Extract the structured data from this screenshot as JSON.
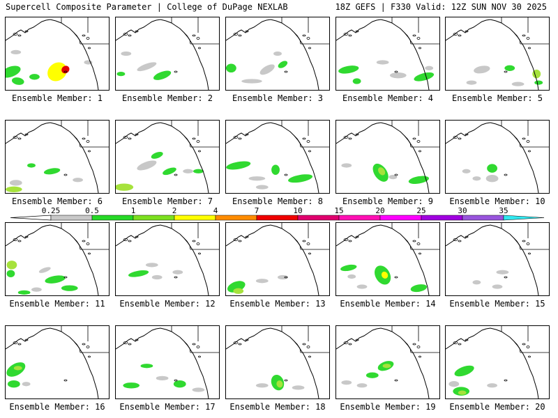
{
  "header": {
    "left": "Supercell Composite Parameter | College of DuPage NEXLAB",
    "right": "18Z GEFS | F330 Valid: 12Z SUN NOV 30 2025"
  },
  "caption_prefix": "Ensemble Member: ",
  "members": [
    {
      "id": "1",
      "blobs": [
        [
          0.05,
          0.75,
          0.1,
          0.07,
          0,
          -20
        ],
        [
          0.12,
          0.88,
          0.06,
          0.05,
          0,
          10
        ],
        [
          0.28,
          0.82,
          0.05,
          0.04,
          0,
          0
        ],
        [
          0.5,
          0.75,
          0.1,
          0.12,
          2,
          -40
        ],
        [
          0.58,
          0.72,
          0.04,
          0.05,
          4,
          -40
        ],
        [
          0.1,
          0.48,
          0.05,
          0.03,
          -1,
          0
        ],
        [
          0.8,
          0.62,
          0.04,
          0.03,
          -1,
          0
        ]
      ]
    },
    {
      "id": "2",
      "blobs": [
        [
          0.05,
          0.78,
          0.04,
          0.03,
          0,
          0
        ],
        [
          0.45,
          0.8,
          0.09,
          0.05,
          0,
          -20
        ],
        [
          0.3,
          0.68,
          0.1,
          0.04,
          -1,
          -20
        ],
        [
          0.1,
          0.5,
          0.05,
          0.03,
          -1,
          0
        ]
      ]
    },
    {
      "id": "3",
      "blobs": [
        [
          0.05,
          0.7,
          0.05,
          0.06,
          0,
          0
        ],
        [
          0.4,
          0.72,
          0.08,
          0.05,
          -1,
          -30
        ],
        [
          0.55,
          0.65,
          0.05,
          0.04,
          0,
          -30
        ],
        [
          0.25,
          0.88,
          0.1,
          0.03,
          -1,
          0
        ],
        [
          0.5,
          0.5,
          0.04,
          0.03,
          -1,
          0
        ]
      ]
    },
    {
      "id": "4",
      "blobs": [
        [
          0.12,
          0.72,
          0.1,
          0.05,
          0,
          -10
        ],
        [
          0.85,
          0.82,
          0.1,
          0.05,
          0,
          -15
        ],
        [
          0.2,
          0.88,
          0.04,
          0.04,
          0,
          0
        ],
        [
          0.45,
          0.62,
          0.06,
          0.03,
          -1,
          0
        ],
        [
          0.6,
          0.8,
          0.08,
          0.04,
          -1,
          0
        ],
        [
          0.9,
          0.7,
          0.04,
          0.03,
          -1,
          0
        ]
      ]
    },
    {
      "id": "5",
      "blobs": [
        [
          0.35,
          0.72,
          0.08,
          0.05,
          -1,
          -10
        ],
        [
          0.62,
          0.7,
          0.05,
          0.04,
          0,
          0
        ],
        [
          0.88,
          0.78,
          0.04,
          0.06,
          1,
          0
        ],
        [
          0.9,
          0.9,
          0.04,
          0.03,
          0,
          0
        ],
        [
          0.7,
          0.92,
          0.06,
          0.03,
          -1,
          0
        ],
        [
          0.25,
          0.9,
          0.05,
          0.03,
          -1,
          0
        ]
      ]
    },
    {
      "id": "6",
      "blobs": [
        [
          0.08,
          0.95,
          0.08,
          0.04,
          1,
          0
        ],
        [
          0.1,
          0.86,
          0.06,
          0.04,
          -1,
          0
        ],
        [
          0.45,
          0.7,
          0.08,
          0.04,
          0,
          -10
        ],
        [
          0.25,
          0.62,
          0.04,
          0.03,
          0,
          0
        ],
        [
          0.7,
          0.82,
          0.05,
          0.03,
          -1,
          0
        ]
      ]
    },
    {
      "id": "7",
      "blobs": [
        [
          0.08,
          0.92,
          0.09,
          0.05,
          1,
          0
        ],
        [
          0.4,
          0.48,
          0.06,
          0.04,
          0,
          -20
        ],
        [
          0.3,
          0.62,
          0.1,
          0.05,
          -1,
          -20
        ],
        [
          0.52,
          0.7,
          0.07,
          0.04,
          0,
          -20
        ],
        [
          0.7,
          0.7,
          0.05,
          0.03,
          -1,
          0
        ],
        [
          0.8,
          0.7,
          0.05,
          0.03,
          0,
          0
        ]
      ]
    },
    {
      "id": "8",
      "blobs": [
        [
          0.12,
          0.62,
          0.12,
          0.05,
          0,
          -10
        ],
        [
          0.48,
          0.68,
          0.04,
          0.07,
          0,
          0
        ],
        [
          0.72,
          0.8,
          0.12,
          0.05,
          0,
          -10
        ],
        [
          0.3,
          0.8,
          0.08,
          0.03,
          -1,
          0
        ],
        [
          0.35,
          0.92,
          0.06,
          0.03,
          -1,
          0
        ]
      ]
    },
    {
      "id": "9",
      "blobs": [
        [
          0.43,
          0.72,
          0.06,
          0.14,
          0,
          -35
        ],
        [
          0.44,
          0.7,
          0.03,
          0.06,
          1,
          -35
        ],
        [
          0.8,
          0.82,
          0.1,
          0.05,
          0,
          -10
        ],
        [
          0.1,
          0.62,
          0.05,
          0.03,
          -1,
          0
        ],
        [
          0.55,
          0.78,
          0.04,
          0.03,
          -1,
          0
        ]
      ]
    },
    {
      "id": "10",
      "blobs": [
        [
          0.45,
          0.66,
          0.05,
          0.06,
          0,
          0
        ],
        [
          0.45,
          0.8,
          0.06,
          0.05,
          -1,
          0
        ],
        [
          0.2,
          0.7,
          0.04,
          0.03,
          -1,
          0
        ],
        [
          0.3,
          0.8,
          0.04,
          0.03,
          -1,
          0
        ]
      ]
    },
    {
      "id": "11",
      "blobs": [
        [
          0.06,
          0.58,
          0.05,
          0.06,
          1,
          0
        ],
        [
          0.05,
          0.7,
          0.04,
          0.05,
          0,
          0
        ],
        [
          0.48,
          0.78,
          0.1,
          0.05,
          0,
          -10
        ],
        [
          0.62,
          0.9,
          0.08,
          0.04,
          0,
          0
        ],
        [
          0.38,
          0.65,
          0.06,
          0.03,
          -1,
          -20
        ],
        [
          0.18,
          0.96,
          0.06,
          0.03,
          0,
          0
        ],
        [
          0.3,
          0.92,
          0.05,
          0.03,
          -1,
          0
        ]
      ]
    },
    {
      "id": "12",
      "blobs": [
        [
          0.22,
          0.7,
          0.1,
          0.04,
          0,
          -10
        ],
        [
          0.35,
          0.58,
          0.06,
          0.03,
          -1,
          0
        ],
        [
          0.6,
          0.68,
          0.05,
          0.03,
          -1,
          0
        ],
        [
          0.4,
          0.75,
          0.05,
          0.03,
          -1,
          0
        ]
      ]
    },
    {
      "id": "13",
      "blobs": [
        [
          0.1,
          0.88,
          0.09,
          0.07,
          0,
          -20
        ],
        [
          0.12,
          0.94,
          0.05,
          0.04,
          1,
          0
        ],
        [
          0.35,
          0.8,
          0.06,
          0.03,
          -1,
          0
        ],
        [
          0.55,
          0.75,
          0.05,
          0.03,
          -1,
          0
        ]
      ]
    },
    {
      "id": "14",
      "blobs": [
        [
          0.45,
          0.72,
          0.07,
          0.14,
          0,
          -30
        ],
        [
          0.47,
          0.72,
          0.03,
          0.05,
          2,
          -30
        ],
        [
          0.12,
          0.62,
          0.08,
          0.04,
          0,
          -10
        ],
        [
          0.8,
          0.9,
          0.08,
          0.05,
          0,
          -10
        ],
        [
          0.25,
          0.88,
          0.05,
          0.03,
          -1,
          0
        ],
        [
          0.15,
          0.74,
          0.04,
          0.03,
          -1,
          0
        ]
      ]
    },
    {
      "id": "15",
      "blobs": [
        [
          0.55,
          0.68,
          0.06,
          0.03,
          -1,
          0
        ],
        [
          0.5,
          0.88,
          0.05,
          0.03,
          -1,
          0
        ],
        [
          0.3,
          0.82,
          0.04,
          0.03,
          -1,
          0
        ]
      ]
    },
    {
      "id": "16",
      "blobs": [
        [
          0.1,
          0.6,
          0.1,
          0.08,
          0,
          -30
        ],
        [
          0.08,
          0.8,
          0.06,
          0.05,
          0,
          0
        ],
        [
          0.12,
          0.58,
          0.04,
          0.03,
          1,
          0
        ],
        [
          0.2,
          0.8,
          0.04,
          0.03,
          -1,
          0
        ]
      ]
    },
    {
      "id": "17",
      "blobs": [
        [
          0.15,
          0.82,
          0.08,
          0.04,
          0,
          0
        ],
        [
          0.62,
          0.8,
          0.06,
          0.05,
          0,
          0
        ],
        [
          0.3,
          0.55,
          0.06,
          0.03,
          0,
          0
        ],
        [
          0.45,
          0.72,
          0.06,
          0.03,
          -1,
          0
        ],
        [
          0.8,
          0.88,
          0.06,
          0.03,
          -1,
          0
        ]
      ]
    },
    {
      "id": "18",
      "blobs": [
        [
          0.5,
          0.78,
          0.06,
          0.11,
          0,
          -20
        ],
        [
          0.52,
          0.8,
          0.03,
          0.05,
          1,
          -20
        ],
        [
          0.35,
          0.82,
          0.06,
          0.03,
          -1,
          0
        ],
        [
          0.7,
          0.85,
          0.06,
          0.03,
          -1,
          0
        ]
      ]
    },
    {
      "id": "19",
      "blobs": [
        [
          0.48,
          0.55,
          0.08,
          0.06,
          0,
          -20
        ],
        [
          0.49,
          0.55,
          0.04,
          0.03,
          1,
          0
        ],
        [
          0.35,
          0.68,
          0.06,
          0.04,
          0,
          0
        ],
        [
          0.1,
          0.78,
          0.05,
          0.03,
          -1,
          0
        ],
        [
          0.25,
          0.82,
          0.05,
          0.03,
          -1,
          0
        ]
      ]
    },
    {
      "id": "20",
      "blobs": [
        [
          0.18,
          0.62,
          0.1,
          0.06,
          0,
          -20
        ],
        [
          0.15,
          0.9,
          0.08,
          0.06,
          0,
          0
        ],
        [
          0.16,
          0.92,
          0.04,
          0.03,
          1,
          0
        ],
        [
          0.08,
          0.8,
          0.05,
          0.04,
          -1,
          0
        ],
        [
          0.45,
          0.82,
          0.05,
          0.03,
          -1,
          0
        ]
      ]
    }
  ],
  "colorbar": {
    "labels": [
      "0.25",
      "0.5",
      "1",
      "2",
      "4",
      "7",
      "10",
      "15",
      "20",
      "25",
      "30",
      "35"
    ],
    "colors": [
      "#c8c8c8",
      "#26d926",
      "#7ce01f",
      "#ffff00",
      "#ff8c00",
      "#f00000",
      "#e0006e",
      "#ff10b4",
      "#ff00ff",
      "#a000e0",
      "#9955dd",
      "#30e8f0"
    ]
  },
  "shading": {
    "gray": "#c8c8c8",
    "green": "#30d930",
    "light_green": "#a6e23c",
    "yellow": "#ffff00",
    "orange": "#ff7f00",
    "red": "#e00000"
  }
}
